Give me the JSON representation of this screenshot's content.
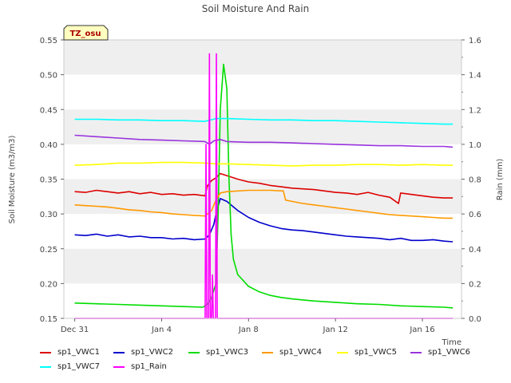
{
  "chart_data": {
    "type": "line",
    "title": "Soil Moisture And Rain",
    "badge": "TZ_osu",
    "xlabel": "Time",
    "ylabel": "Soil Moisture (m3/m3)",
    "y2label": "Rain (mm)",
    "xlim": [
      -0.5,
      17.8
    ],
    "ylim": [
      0.15,
      0.55
    ],
    "y2lim": [
      0.0,
      1.6
    ],
    "x_ticks": [
      {
        "x": 0,
        "label": "Dec 31"
      },
      {
        "x": 4,
        "label": "Jan 4"
      },
      {
        "x": 8,
        "label": "Jan 8"
      },
      {
        "x": 12,
        "label": "Jan 12"
      },
      {
        "x": 16,
        "label": "Jan 16"
      }
    ],
    "y_ticks": [
      "0.15",
      "0.20",
      "0.25",
      "0.30",
      "0.35",
      "0.40",
      "0.45",
      "0.50",
      "0.55"
    ],
    "y2_ticks": [
      "0.0",
      "0.2",
      "0.4",
      "0.6",
      "0.8",
      "1.0",
      "1.2",
      "1.4",
      "1.6"
    ],
    "grid": "horizontal bands",
    "legend_position": "bottom",
    "series": [
      {
        "name": "sp1_VWC1",
        "color": "#dd0000",
        "axis": "left",
        "points": [
          [
            0.0,
            0.332
          ],
          [
            0.5,
            0.331
          ],
          [
            1.0,
            0.334
          ],
          [
            1.5,
            0.332
          ],
          [
            2.0,
            0.33
          ],
          [
            2.5,
            0.332
          ],
          [
            3.0,
            0.329
          ],
          [
            3.5,
            0.331
          ],
          [
            4.0,
            0.328
          ],
          [
            4.5,
            0.329
          ],
          [
            5.0,
            0.327
          ],
          [
            5.5,
            0.328
          ],
          [
            6.0,
            0.326
          ],
          [
            6.1,
            0.34
          ],
          [
            6.3,
            0.348
          ],
          [
            6.5,
            0.352
          ],
          [
            6.7,
            0.358
          ],
          [
            7.0,
            0.355
          ],
          [
            7.5,
            0.35
          ],
          [
            8.0,
            0.346
          ],
          [
            8.5,
            0.344
          ],
          [
            9.0,
            0.341
          ],
          [
            9.5,
            0.339
          ],
          [
            10.0,
            0.337
          ],
          [
            10.5,
            0.336
          ],
          [
            11.0,
            0.335
          ],
          [
            11.5,
            0.333
          ],
          [
            12.0,
            0.331
          ],
          [
            12.5,
            0.33
          ],
          [
            13.0,
            0.328
          ],
          [
            13.5,
            0.331
          ],
          [
            14.0,
            0.327
          ],
          [
            14.5,
            0.324
          ],
          [
            14.9,
            0.315
          ],
          [
            15.0,
            0.33
          ],
          [
            15.5,
            0.328
          ],
          [
            16.0,
            0.326
          ],
          [
            16.5,
            0.324
          ],
          [
            17.0,
            0.323
          ],
          [
            17.4,
            0.323
          ]
        ]
      },
      {
        "name": "sp1_VWC2",
        "color": "#0000cc",
        "axis": "left",
        "points": [
          [
            0.0,
            0.27
          ],
          [
            0.5,
            0.269
          ],
          [
            1.0,
            0.271
          ],
          [
            1.5,
            0.268
          ],
          [
            2.0,
            0.27
          ],
          [
            2.5,
            0.267
          ],
          [
            3.0,
            0.268
          ],
          [
            3.5,
            0.266
          ],
          [
            4.0,
            0.266
          ],
          [
            4.5,
            0.264
          ],
          [
            5.0,
            0.265
          ],
          [
            5.5,
            0.263
          ],
          [
            6.0,
            0.264
          ],
          [
            6.2,
            0.27
          ],
          [
            6.4,
            0.285
          ],
          [
            6.5,
            0.3
          ],
          [
            6.7,
            0.322
          ],
          [
            7.0,
            0.318
          ],
          [
            7.5,
            0.305
          ],
          [
            8.0,
            0.295
          ],
          [
            8.5,
            0.288
          ],
          [
            9.0,
            0.283
          ],
          [
            9.5,
            0.279
          ],
          [
            10.0,
            0.277
          ],
          [
            10.5,
            0.276
          ],
          [
            11.0,
            0.274
          ],
          [
            11.5,
            0.272
          ],
          [
            12.0,
            0.27
          ],
          [
            12.5,
            0.268
          ],
          [
            13.0,
            0.267
          ],
          [
            13.5,
            0.266
          ],
          [
            14.0,
            0.265
          ],
          [
            14.5,
            0.263
          ],
          [
            15.0,
            0.265
          ],
          [
            15.5,
            0.262
          ],
          [
            16.0,
            0.262
          ],
          [
            16.5,
            0.263
          ],
          [
            17.0,
            0.261
          ],
          [
            17.4,
            0.26
          ]
        ]
      },
      {
        "name": "sp1_VWC3",
        "color": "#00dd00",
        "axis": "left",
        "points": [
          [
            0.0,
            0.172
          ],
          [
            1.0,
            0.171
          ],
          [
            2.0,
            0.17
          ],
          [
            3.0,
            0.169
          ],
          [
            4.0,
            0.168
          ],
          [
            5.0,
            0.167
          ],
          [
            5.9,
            0.166
          ],
          [
            6.1,
            0.17
          ],
          [
            6.3,
            0.18
          ],
          [
            6.5,
            0.2
          ],
          [
            6.6,
            0.3
          ],
          [
            6.7,
            0.45
          ],
          [
            6.85,
            0.515
          ],
          [
            7.0,
            0.48
          ],
          [
            7.1,
            0.35
          ],
          [
            7.2,
            0.27
          ],
          [
            7.3,
            0.235
          ],
          [
            7.5,
            0.213
          ],
          [
            8.0,
            0.196
          ],
          [
            8.5,
            0.188
          ],
          [
            9.0,
            0.183
          ],
          [
            9.5,
            0.18
          ],
          [
            10.0,
            0.178
          ],
          [
            11.0,
            0.175
          ],
          [
            12.0,
            0.173
          ],
          [
            13.0,
            0.171
          ],
          [
            14.0,
            0.17
          ],
          [
            15.0,
            0.168
          ],
          [
            16.0,
            0.167
          ],
          [
            17.0,
            0.166
          ],
          [
            17.4,
            0.165
          ]
        ]
      },
      {
        "name": "sp1_VWC4",
        "color": "#ff9900",
        "axis": "left",
        "points": [
          [
            0.0,
            0.313
          ],
          [
            0.5,
            0.312
          ],
          [
            1.0,
            0.311
          ],
          [
            1.5,
            0.31
          ],
          [
            2.0,
            0.308
          ],
          [
            2.5,
            0.306
          ],
          [
            3.0,
            0.305
          ],
          [
            3.5,
            0.303
          ],
          [
            4.0,
            0.302
          ],
          [
            4.5,
            0.3
          ],
          [
            5.0,
            0.299
          ],
          [
            5.5,
            0.298
          ],
          [
            6.0,
            0.297
          ],
          [
            6.3,
            0.305
          ],
          [
            6.5,
            0.32
          ],
          [
            6.7,
            0.33
          ],
          [
            7.0,
            0.332
          ],
          [
            8.0,
            0.334
          ],
          [
            9.0,
            0.334
          ],
          [
            9.6,
            0.333
          ],
          [
            9.7,
            0.32
          ],
          [
            10.0,
            0.318
          ],
          [
            10.5,
            0.315
          ],
          [
            11.0,
            0.313
          ],
          [
            11.5,
            0.311
          ],
          [
            12.0,
            0.309
          ],
          [
            12.5,
            0.307
          ],
          [
            13.0,
            0.305
          ],
          [
            13.5,
            0.303
          ],
          [
            14.0,
            0.301
          ],
          [
            14.5,
            0.299
          ],
          [
            15.0,
            0.298
          ],
          [
            15.5,
            0.297
          ],
          [
            16.0,
            0.296
          ],
          [
            16.5,
            0.295
          ],
          [
            17.0,
            0.294
          ],
          [
            17.4,
            0.294
          ]
        ]
      },
      {
        "name": "sp1_VWC5",
        "color": "#ffff00",
        "axis": "left",
        "points": [
          [
            0.0,
            0.37
          ],
          [
            1.0,
            0.371
          ],
          [
            2.0,
            0.373
          ],
          [
            3.0,
            0.373
          ],
          [
            4.0,
            0.374
          ],
          [
            5.0,
            0.374
          ],
          [
            6.0,
            0.373
          ],
          [
            6.5,
            0.372
          ],
          [
            7.0,
            0.372
          ],
          [
            8.0,
            0.371
          ],
          [
            9.0,
            0.37
          ],
          [
            10.0,
            0.369
          ],
          [
            11.0,
            0.37
          ],
          [
            12.0,
            0.37
          ],
          [
            13.0,
            0.371
          ],
          [
            14.0,
            0.371
          ],
          [
            15.0,
            0.37
          ],
          [
            16.0,
            0.371
          ],
          [
            17.0,
            0.37
          ],
          [
            17.4,
            0.37
          ]
        ]
      },
      {
        "name": "sp1_VWC6",
        "color": "#9933dd",
        "axis": "left",
        "points": [
          [
            0.0,
            0.413
          ],
          [
            1.0,
            0.411
          ],
          [
            2.0,
            0.409
          ],
          [
            3.0,
            0.407
          ],
          [
            4.0,
            0.406
          ],
          [
            5.0,
            0.405
          ],
          [
            6.0,
            0.404
          ],
          [
            6.2,
            0.4
          ],
          [
            6.4,
            0.405
          ],
          [
            6.7,
            0.407
          ],
          [
            7.0,
            0.404
          ],
          [
            8.0,
            0.403
          ],
          [
            9.0,
            0.403
          ],
          [
            10.0,
            0.402
          ],
          [
            11.0,
            0.401
          ],
          [
            12.0,
            0.4
          ],
          [
            13.0,
            0.399
          ],
          [
            14.0,
            0.398
          ],
          [
            15.0,
            0.398
          ],
          [
            16.0,
            0.397
          ],
          [
            17.0,
            0.397
          ],
          [
            17.4,
            0.396
          ]
        ]
      },
      {
        "name": "sp1_VWC7",
        "color": "#00ffff",
        "axis": "left",
        "points": [
          [
            0.0,
            0.436
          ],
          [
            1.0,
            0.436
          ],
          [
            2.0,
            0.435
          ],
          [
            3.0,
            0.435
          ],
          [
            4.0,
            0.434
          ],
          [
            5.0,
            0.434
          ],
          [
            6.0,
            0.433
          ],
          [
            6.5,
            0.437
          ],
          [
            7.0,
            0.437
          ],
          [
            8.0,
            0.436
          ],
          [
            9.0,
            0.435
          ],
          [
            10.0,
            0.435
          ],
          [
            11.0,
            0.434
          ],
          [
            12.0,
            0.434
          ],
          [
            13.0,
            0.433
          ],
          [
            14.0,
            0.432
          ],
          [
            15.0,
            0.431
          ],
          [
            16.0,
            0.43
          ],
          [
            17.0,
            0.429
          ],
          [
            17.4,
            0.429
          ]
        ]
      },
      {
        "name": "sp1_Rain",
        "color": "#ff00ff",
        "axis": "right",
        "points": [
          [
            0.0,
            0.0
          ],
          [
            6.0,
            0.0
          ],
          [
            6.04,
            1.0
          ],
          [
            6.08,
            0.0
          ],
          [
            6.16,
            0.0
          ],
          [
            6.2,
            1.52
          ],
          [
            6.24,
            0.0
          ],
          [
            6.3,
            0.0
          ],
          [
            6.34,
            0.25
          ],
          [
            6.38,
            0.0
          ],
          [
            6.48,
            0.0
          ],
          [
            6.52,
            1.52
          ],
          [
            6.56,
            0.0
          ],
          [
            17.4,
            0.0
          ]
        ]
      }
    ]
  }
}
